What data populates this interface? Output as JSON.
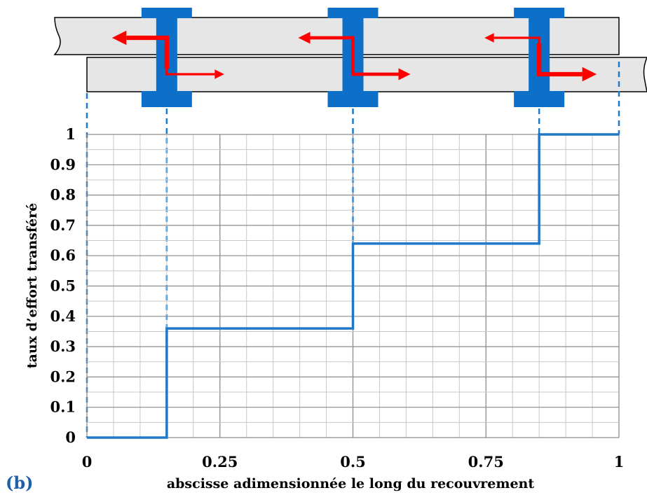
{
  "colors": {
    "step_line": "#1f78c8",
    "connector": "#1f78c8",
    "bolt": "#0d6fc7",
    "plate_fill": "#e6e6e6",
    "force_arrow": "#ff0000",
    "grid_major": "#8c8c8c",
    "grid_minor": "#c8c8c8",
    "panel_label": "#1f5fa8"
  },
  "panel_label": "(b)",
  "chart_data": {
    "type": "line",
    "xlabel": "abscisse adimensionnée le long du recouvrement",
    "ylabel": "taux d’effort  transféré",
    "xlim": [
      0,
      1
    ],
    "ylim": [
      0,
      1
    ],
    "grid": true,
    "xticks": [
      {
        "value": 0,
        "label": "0"
      },
      {
        "value": 0.25,
        "label": "0.25"
      },
      {
        "value": 0.5,
        "label": "0.5"
      },
      {
        "value": 0.75,
        "label": "0.75"
      },
      {
        "value": 1,
        "label": "1"
      }
    ],
    "yticks": [
      {
        "value": 0,
        "label": "0"
      },
      {
        "value": 0.1,
        "label": "0.1"
      },
      {
        "value": 0.2,
        "label": "0.2"
      },
      {
        "value": 0.3,
        "label": "0.3"
      },
      {
        "value": 0.4,
        "label": "0.4"
      },
      {
        "value": 0.5,
        "label": "0.5"
      },
      {
        "value": 0.6,
        "label": "0.6"
      },
      {
        "value": 0.7,
        "label": "0.7"
      },
      {
        "value": 0.8,
        "label": "0.8"
      },
      {
        "value": 0.9,
        "label": "0.9"
      },
      {
        "value": 1,
        "label": "1"
      }
    ],
    "series": [
      {
        "step": "post",
        "x": [
          0,
          0.15,
          0.5,
          0.85,
          1
        ],
        "y": [
          0,
          0.36,
          0.64,
          1,
          1
        ]
      }
    ]
  },
  "schematic": {
    "fastener_positions": [
      0.15,
      0.5,
      0.85
    ],
    "force_level_upper_plate": [
      0.85,
      0.5,
      0.15
    ],
    "force_level_lower_plate": [
      0.15,
      0.5,
      0.85
    ]
  }
}
